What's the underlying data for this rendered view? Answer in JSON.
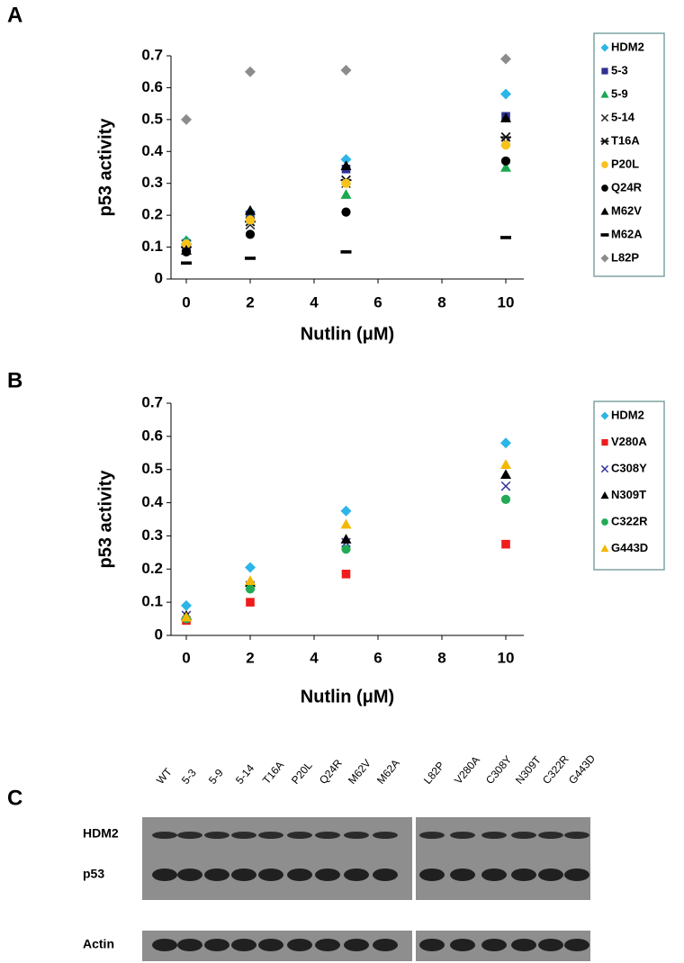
{
  "chart_data": [
    {
      "type": "scatter",
      "panel": "A",
      "x_label": "Nutlin (μM)",
      "y_label": "p53 activity",
      "x": [
        0,
        2,
        5,
        10
      ],
      "xlim": [
        0,
        10
      ],
      "xticks": [
        0,
        2,
        4,
        6,
        8,
        10
      ],
      "ylim": [
        0,
        0.7
      ],
      "yticks": [
        0,
        0.1,
        0.2,
        0.3,
        0.4,
        0.5,
        0.6,
        0.7
      ],
      "grid": false,
      "legend": "right",
      "series": [
        {
          "name": "HDM2",
          "color": "#2cb5e8",
          "marker": "diamond",
          "values": [
            0.12,
            0.21,
            0.375,
            0.58
          ]
        },
        {
          "name": "5-3",
          "color": "#2e3192",
          "marker": "square",
          "values": [
            0.1,
            0.2,
            0.345,
            0.51
          ]
        },
        {
          "name": "5-9",
          "color": "#1aa84f",
          "marker": "triangle",
          "values": [
            0.12,
            0.19,
            0.265,
            0.35
          ]
        },
        {
          "name": "5-14",
          "color": "#222222",
          "marker": "x",
          "values": [
            0.11,
            0.17,
            0.3,
            0.43
          ]
        },
        {
          "name": "T16A",
          "color": "#111111",
          "marker": "asterisk",
          "values": [
            0.1,
            0.18,
            0.31,
            0.445
          ]
        },
        {
          "name": "P20L",
          "color": "#f8c21c",
          "marker": "circle",
          "values": [
            0.11,
            0.185,
            0.3,
            0.42
          ]
        },
        {
          "name": "Q24R",
          "color": "#000000",
          "marker": "circle",
          "values": [
            0.085,
            0.14,
            0.21,
            0.37
          ]
        },
        {
          "name": "M62V",
          "color": "#000000",
          "marker": "triangle",
          "values": [
            0.09,
            0.215,
            0.355,
            0.505
          ]
        },
        {
          "name": "M62A",
          "color": "#000000",
          "marker": "dash",
          "values": [
            0.05,
            0.065,
            0.085,
            0.13
          ]
        },
        {
          "name": "L82P",
          "color": "#8c8c8c",
          "marker": "diamond",
          "values": [
            0.5,
            0.65,
            0.655,
            0.69
          ]
        }
      ]
    },
    {
      "type": "scatter",
      "panel": "B",
      "x_label": "Nutlin (μM)",
      "y_label": "p53 activity",
      "x": [
        0,
        2,
        5,
        10
      ],
      "xlim": [
        0,
        10
      ],
      "xticks": [
        0,
        2,
        4,
        6,
        8,
        10
      ],
      "ylim": [
        0,
        0.7
      ],
      "yticks": [
        0,
        0.1,
        0.2,
        0.3,
        0.4,
        0.5,
        0.6,
        0.7
      ],
      "grid": false,
      "legend": "right",
      "series": [
        {
          "name": "HDM2",
          "color": "#2cb5e8",
          "marker": "diamond",
          "values": [
            0.09,
            0.205,
            0.375,
            0.58
          ]
        },
        {
          "name": "V280A",
          "color": "#ee1c1c",
          "marker": "square",
          "values": [
            0.045,
            0.1,
            0.185,
            0.275
          ]
        },
        {
          "name": "C308Y",
          "color": "#33339a",
          "marker": "x",
          "values": [
            0.06,
            0.15,
            0.28,
            0.45
          ]
        },
        {
          "name": "N309T",
          "color": "#000000",
          "marker": "triangle",
          "values": [
            0.06,
            0.16,
            0.29,
            0.485
          ]
        },
        {
          "name": "C322R",
          "color": "#22aa55",
          "marker": "circle",
          "values": [
            0.05,
            0.14,
            0.26,
            0.41
          ]
        },
        {
          "name": "G443D",
          "color": "#f5b800",
          "marker": "triangle",
          "values": [
            0.055,
            0.165,
            0.335,
            0.515
          ]
        }
      ]
    }
  ],
  "blot": {
    "panel": "C",
    "lanes": [
      [
        "WT",
        "5-3",
        "5-9",
        "5-14",
        "T16A",
        "P20L",
        "Q24R",
        "M62V",
        "M62A"
      ],
      [
        "L82P",
        "V280A",
        "C308Y",
        "N309T",
        "C322R",
        "G443D"
      ]
    ],
    "rows": [
      "HDM2",
      "p53",
      "Actin"
    ]
  }
}
